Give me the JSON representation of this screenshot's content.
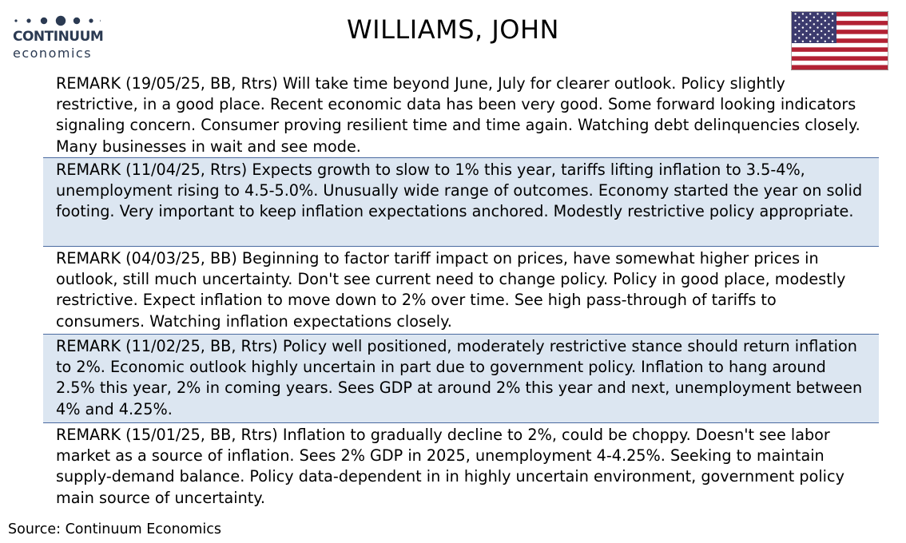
{
  "logo": {
    "brand": "CONTINUUM",
    "sub": "economics"
  },
  "title": "WILLIAMS, JOHN",
  "remarks": [
    "REMARK (19/05/25, BB, Rtrs) Will take time beyond June, July for clearer outlook. Policy slightly restrictive, in a good place. Recent economic data has been very good.  Some forward looking indicators signaling concern. Consumer proving resilient time and time again. Watching debt delinquencies closely. Many businesses in wait and see mode.",
    "REMARK (11/04/25, Rtrs) Expects growth to slow to 1% this year, tariffs lifting inflation to 3.5-4%, unemployment rising to 4.5-5.0%. Unusually wide  range of outcomes. Economy started the year on solid footing. Very important to keep inflation expectations anchored. Modestly restrictive policy appropriate.",
    "REMARK (04/03/25, BB) Beginning to factor tariff impact on prices, have somewhat higher prices in outlook, still much uncertainty. Don't see current need to change policy. Policy in good place, modestly restrictive. Expect inflation to move down to 2% over time. See high pass-through of tariffs to consumers. Watching inflation expectations closely.",
    "REMARK (11/02/25, BB, Rtrs) Policy well positioned, moderately restrictive stance should return inflation to 2%. Economic outlook highly uncertain in part due to government policy. Inflation to hang around 2.5% this year, 2% in coming years. Sees GDP at around 2% this year and next, unemployment between 4% and 4.25%.",
    "REMARK (15/01/25, BB, Rtrs) Inflation to gradually decline to 2%, could be choppy. Doesn't see labor market as a source of inflation. Sees 2% GDP in 2025, unemployment 4-4.25%. Seeking to maintain supply-demand balance. Policy data-dependent in in highly uncertain environment, government policy main source of uncertainty."
  ],
  "source": "Source: Continuum Economics",
  "colors": {
    "shade": "#dce6f1",
    "divider": "#4a6aa0",
    "logo": "#2b3a52"
  },
  "icons": {
    "flag": "us-flag-icon",
    "logo": "continuum-logo"
  }
}
